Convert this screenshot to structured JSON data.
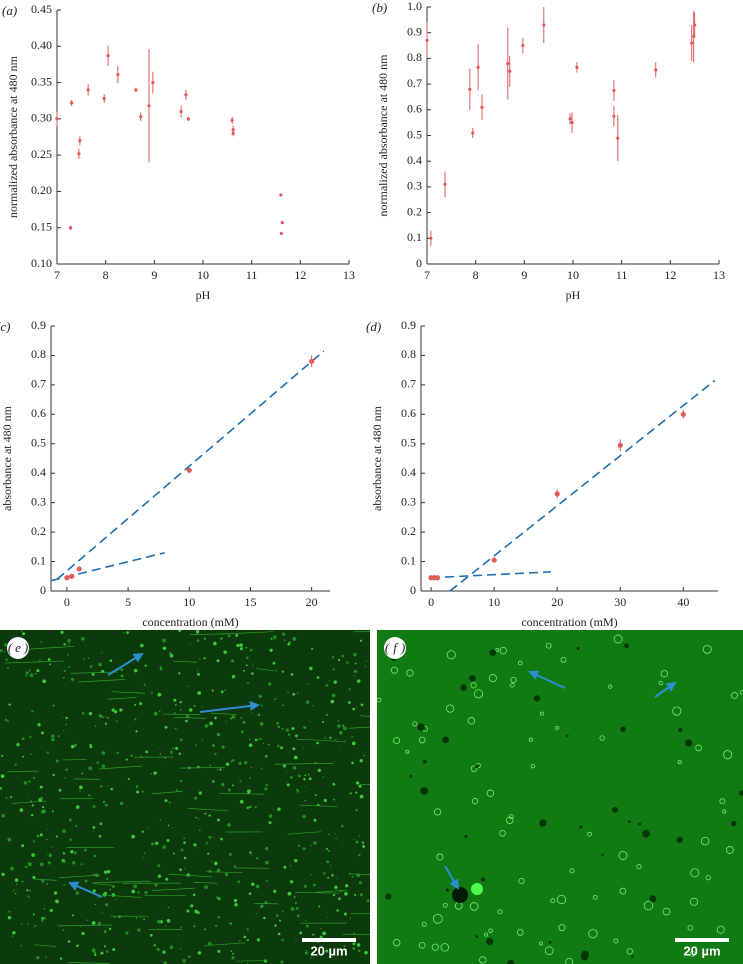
{
  "chart_data": [
    {
      "type": "scatter",
      "label": "(a)",
      "x_label": "pH",
      "y_label": "normalized absorbance at 480 nm",
      "color": "#e05a5a",
      "x": [
        7.0,
        7.28,
        7.3,
        7.45,
        7.47,
        7.64,
        7.97,
        8.05,
        8.25,
        8.62,
        8.72,
        8.89,
        8.97,
        9.55,
        9.65,
        9.7,
        10.6,
        10.62,
        10.62,
        11.6,
        11.63,
        11.61
      ],
      "values": [
        0.3,
        0.15,
        0.322,
        0.252,
        0.27,
        0.34,
        0.328,
        0.387,
        0.361,
        0.34,
        0.303,
        0.318,
        0.35,
        0.31,
        0.333,
        0.3,
        0.298,
        0.285,
        0.28,
        0.195,
        0.157,
        0.142
      ],
      "errors": [
        0.01,
        0.003,
        0.004,
        0.007,
        0.006,
        0.008,
        0.006,
        0.014,
        0.012,
        0.003,
        0.006,
        0.078,
        0.015,
        0.008,
        0.007,
        0.003,
        0.005,
        0.006,
        0.004,
        0.002,
        0.002,
        0.002
      ],
      "xlim": [
        7,
        13
      ],
      "xticks": [
        7,
        8,
        9,
        10,
        11,
        12,
        13
      ],
      "ylim": [
        0.1,
        0.45
      ],
      "yticks": [
        {
          "value": 0.1,
          "label": "0.10"
        },
        {
          "value": 0.15,
          "label": "0.15"
        },
        {
          "value": 0.2,
          "label": "0.20"
        },
        {
          "value": 0.25,
          "label": "0.25"
        },
        {
          "value": 0.3,
          "label": "0.30"
        },
        {
          "value": 0.35,
          "label": "0.35"
        },
        {
          "value": 0.4,
          "label": "0.40"
        },
        {
          "value": 0.45,
          "label": "0.45"
        }
      ]
    },
    {
      "type": "scatter",
      "label": "(b)",
      "x_label": "pH",
      "y_label": "normalized absorbance at 480 nm",
      "color": "#e05a5a",
      "x": [
        7.0,
        7.08,
        7.37,
        7.88,
        7.94,
        8.05,
        8.13,
        8.66,
        8.7,
        8.97,
        9.4,
        9.94,
        9.98,
        10.08,
        10.84,
        10.84,
        10.92,
        11.7,
        12.44,
        12.5,
        12.48
      ],
      "values": [
        0.87,
        0.1,
        0.31,
        0.68,
        0.51,
        0.765,
        0.61,
        0.78,
        0.75,
        0.85,
        0.93,
        0.565,
        0.55,
        0.765,
        0.675,
        0.575,
        0.49,
        0.755,
        0.86,
        0.93,
        0.885
      ],
      "errors": [
        0.07,
        0.03,
        0.05,
        0.08,
        0.02,
        0.09,
        0.05,
        0.14,
        0.06,
        0.03,
        0.07,
        0.02,
        0.04,
        0.02,
        0.04,
        0.04,
        0.09,
        0.03,
        0.07,
        0.05,
        0.1
      ],
      "xlim": [
        7,
        13
      ],
      "xticks": [
        7,
        8,
        9,
        10,
        11,
        12,
        13
      ],
      "ylim": [
        0,
        1.0
      ],
      "yticks": [
        0,
        0.1,
        0.2,
        0.3,
        0.4,
        0.5,
        0.6,
        0.7,
        0.8,
        0.9,
        {
          "value": 1.0,
          "label": "1.0"
        }
      ]
    },
    {
      "type": "scatter",
      "label": "(c)",
      "x_label": "concentration (mM)",
      "y_label": "absorbance at 480 nm",
      "color": "#e05a5a",
      "fit_color": "#1f6fb0",
      "x": [
        0,
        0.4,
        1,
        10,
        20
      ],
      "values": [
        0.045,
        0.05,
        0.075,
        0.41,
        0.78
      ],
      "errors": [
        0.004,
        0.004,
        0.005,
        0.008,
        0.02
      ],
      "fits": [
        {
          "x": [
            -0.8,
            21
          ],
          "values": [
            0.04,
            0.815
          ]
        },
        {
          "x": [
            -1.3,
            8
          ],
          "values": [
            0.035,
            0.13
          ]
        }
      ],
      "xlim": [
        -1.3,
        21.5
      ],
      "xticks": [
        0,
        5,
        10,
        15,
        20
      ],
      "ylim": [
        0,
        0.9
      ],
      "yticks": [
        0,
        0.1,
        0.2,
        0.3,
        0.4,
        0.5,
        0.6,
        0.7,
        0.8,
        0.9
      ]
    },
    {
      "type": "scatter",
      "label": "(d)",
      "x_label": "concentration (mM)",
      "y_label": "absorbance at 480 nm",
      "color": "#e05a5a",
      "fit_color": "#1f6fb0",
      "x": [
        0,
        0.5,
        1,
        10,
        20,
        30,
        40
      ],
      "values": [
        0.045,
        0.045,
        0.045,
        0.105,
        0.33,
        0.495,
        0.6
      ],
      "errors": [
        0.003,
        0.003,
        0.003,
        0.004,
        0.015,
        0.02,
        0.015
      ],
      "fits": [
        {
          "x": [
            3,
            45
          ],
          "values": [
            0,
            0.715
          ]
        },
        {
          "x": [
            0,
            19
          ],
          "values": [
            0.045,
            0.065
          ]
        }
      ],
      "xlim": [
        -1.6,
        45.5
      ],
      "xticks": [
        0,
        10,
        20,
        30,
        40
      ],
      "ylim": [
        0,
        0.9
      ],
      "yticks": [
        0,
        0.1,
        0.2,
        0.3,
        0.4,
        0.5,
        0.6,
        0.7,
        0.8,
        0.9
      ]
    }
  ],
  "images": [
    {
      "label": "e",
      "scale": "20 µm"
    },
    {
      "label": "f",
      "scale": "20 µm"
    }
  ]
}
